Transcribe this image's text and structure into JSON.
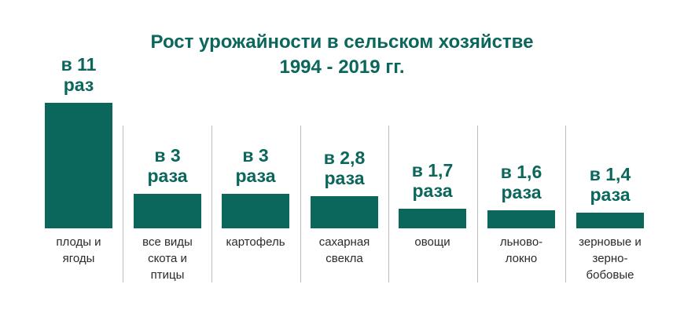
{
  "colors": {
    "accent": "#0b665c",
    "text": "#2a2a2a",
    "divider": "#bdbdbd"
  },
  "chart_data": {
    "type": "bar",
    "title_line1": "Рост урожайности в сельском хозяйстве",
    "title_line2": "1994 - 2019 гг.",
    "categories": [
      [
        "плоды и",
        "ягоды"
      ],
      [
        "все виды",
        "скота и",
        "птицы"
      ],
      [
        "картофель"
      ],
      [
        "сахарная",
        "свекла"
      ],
      [
        "овощи"
      ],
      [
        "льново-",
        "локно"
      ],
      [
        "зерновые и",
        "зерно-",
        "бобовые"
      ]
    ],
    "values": [
      11,
      3,
      3,
      2.8,
      1.7,
      1.6,
      1.4
    ],
    "value_labels": [
      [
        "в 11",
        "раз"
      ],
      [
        "в 3",
        "раза"
      ],
      [
        "в 3",
        "раза"
      ],
      [
        "в 2,8",
        "раза"
      ],
      [
        "в 1,7",
        "раза"
      ],
      [
        "в 1,6",
        "раза"
      ],
      [
        "в 1,4",
        "раза"
      ]
    ],
    "grid": false,
    "legend": "none"
  }
}
